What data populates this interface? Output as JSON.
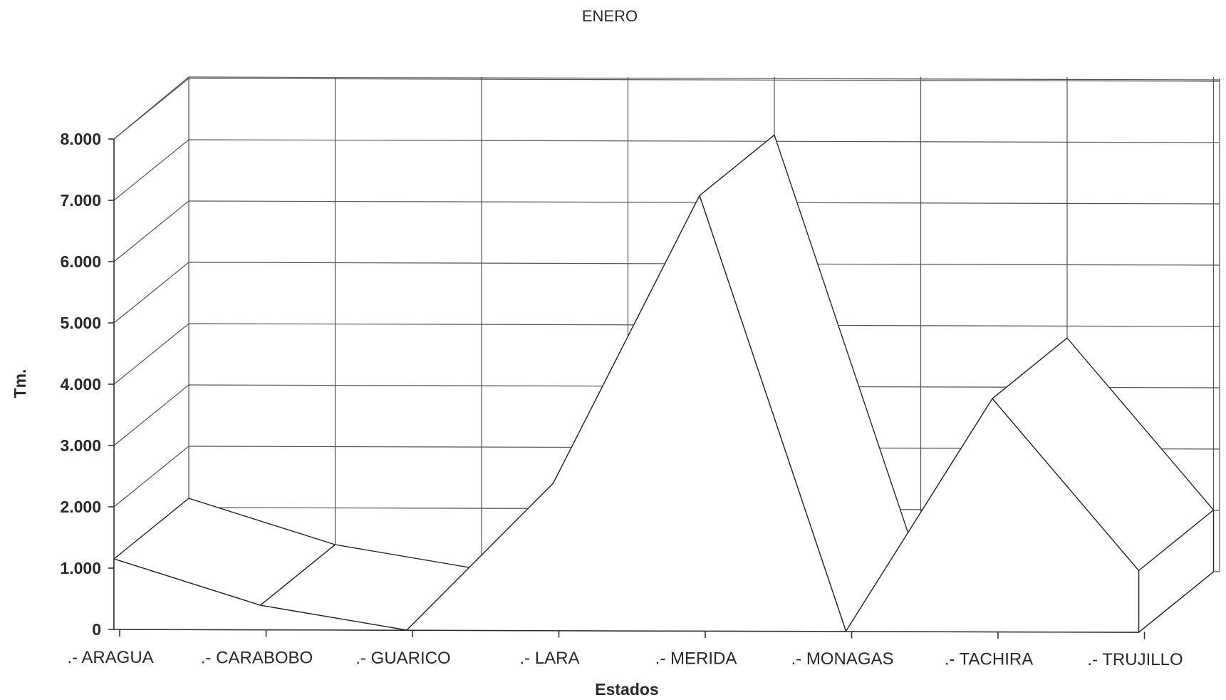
{
  "chart_data": {
    "type": "area",
    "title": "ENERO",
    "xlabel": "Estados",
    "ylabel": "Tm.",
    "categories": [
      ".- ARAGUA",
      ".- CARABOBO",
      ".- GUARICO",
      ".- LARA",
      ".- MERIDA",
      ".- MONAGAS",
      ".- TACHIRA",
      ".- TRUJILLO"
    ],
    "values": [
      1150,
      400,
      0,
      2400,
      7100,
      0,
      3800,
      1000
    ],
    "ylim": [
      0,
      8000
    ],
    "yticks": [
      "0",
      "1.000",
      "2.000",
      "3.000",
      "4.000",
      "5.000",
      "6.000",
      "7.000",
      "8.000"
    ],
    "grid": true,
    "three_d": true
  }
}
